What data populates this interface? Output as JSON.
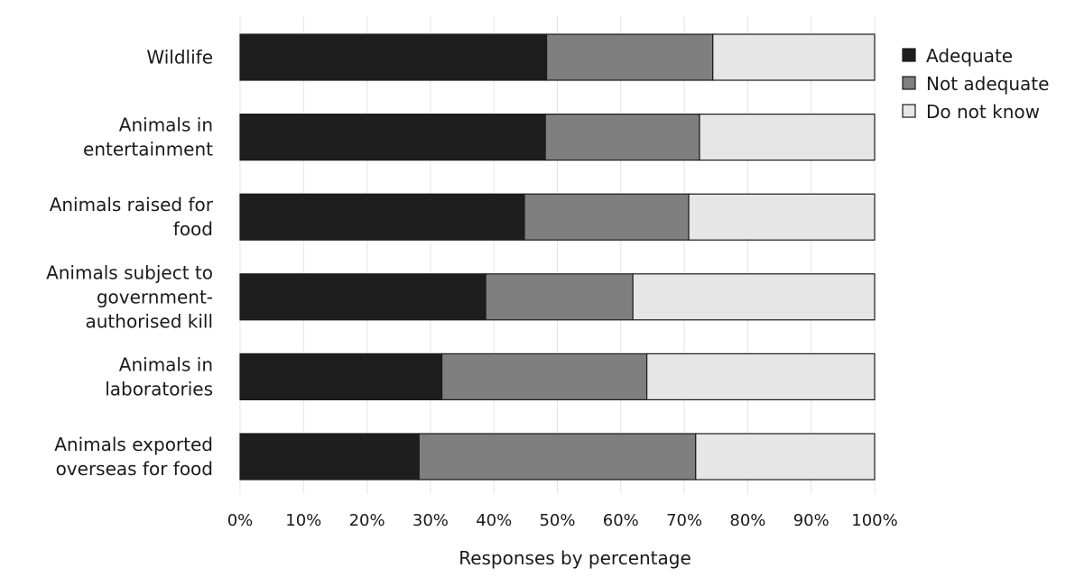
{
  "chart_data": {
    "type": "bar",
    "orientation": "horizontal",
    "stacked": true,
    "categories": [
      "Wildlife",
      "Animals in entertainment",
      "Animals raised for food",
      "Animals subject to government-authorised kill",
      "Animals in laboratories",
      "Animals exported overseas for food"
    ],
    "category_lines": [
      [
        "Wildlife"
      ],
      [
        "Animals in",
        "entertainment"
      ],
      [
        "Animals raised for",
        "food"
      ],
      [
        "Animals subject to",
        "government-",
        "authorised kill"
      ],
      [
        "Animals in",
        "laboratories"
      ],
      [
        "Animals exported",
        "overseas for food"
      ]
    ],
    "series": [
      {
        "name": "Adequate",
        "color": "#1e1e1e",
        "values": [
          48.3,
          48.1,
          44.8,
          38.7,
          31.8,
          28.2
        ]
      },
      {
        "name": "Not adequate",
        "color": "#7f7f7f",
        "values": [
          26.2,
          24.3,
          25.9,
          23.2,
          32.3,
          43.6
        ]
      },
      {
        "name": "Do not know",
        "color": "#e6e6e6",
        "values": [
          25.5,
          27.6,
          29.3,
          38.1,
          35.9,
          28.2
        ]
      }
    ],
    "xlabel": "Responses by percentage",
    "xlim": [
      0,
      100
    ],
    "xticks": [
      "0%",
      "10%",
      "20%",
      "30%",
      "40%",
      "50%",
      "60%",
      "70%",
      "80%",
      "90%",
      "100%"
    ],
    "grid": true,
    "legend_position": "top-right"
  }
}
